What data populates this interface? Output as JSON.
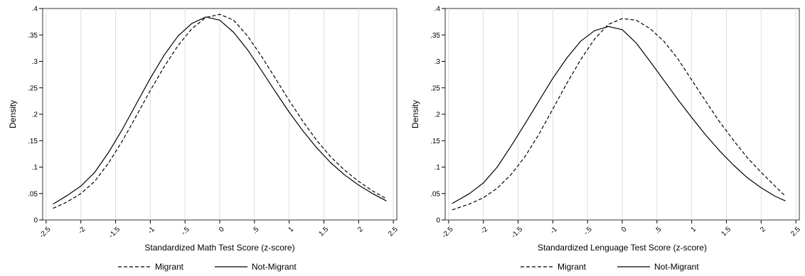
{
  "chart_data": [
    {
      "type": "line",
      "xlabel": "Standardized Math Test Score (z-score)",
      "ylabel": "Density",
      "xlim": [
        -2.55,
        2.55
      ],
      "ylim": [
        0,
        0.4
      ],
      "xticks": [
        -2.5,
        -2,
        -1.5,
        -1,
        -0.5,
        0,
        0.5,
        1,
        1.5,
        2,
        2.5
      ],
      "xtick_labels": [
        "-2.5",
        "-2",
        "-1.5",
        "-1",
        "-.5",
        "0",
        ".5",
        "1",
        "1.5",
        "2",
        "2.5"
      ],
      "yticks": [
        0,
        0.05,
        0.1,
        0.15,
        0.2,
        0.25,
        0.3,
        0.35,
        0.4
      ],
      "ytick_labels": [
        "0",
        ".05",
        ".1",
        ".15",
        ".2",
        ".25",
        ".3",
        ".35",
        ".4"
      ],
      "grid": "vertical",
      "legend": "bottom",
      "series": [
        {
          "name": "Migrant",
          "style": "dashed",
          "x": [
            -2.4,
            -2.2,
            -2.0,
            -1.8,
            -1.6,
            -1.4,
            -1.2,
            -1.0,
            -0.8,
            -0.6,
            -0.4,
            -0.2,
            0.0,
            0.2,
            0.4,
            0.6,
            0.8,
            1.0,
            1.2,
            1.4,
            1.6,
            1.8,
            2.0,
            2.2,
            2.4
          ],
          "y": [
            0.022,
            0.034,
            0.05,
            0.073,
            0.108,
            0.15,
            0.197,
            0.245,
            0.29,
            0.33,
            0.362,
            0.383,
            0.389,
            0.378,
            0.348,
            0.31,
            0.268,
            0.226,
            0.186,
            0.15,
            0.119,
            0.094,
            0.073,
            0.055,
            0.04
          ]
        },
        {
          "name": "Not-Migrant",
          "style": "solid",
          "x": [
            -2.4,
            -2.2,
            -2.0,
            -1.8,
            -1.6,
            -1.4,
            -1.2,
            -1.0,
            -0.8,
            -0.6,
            -0.4,
            -0.2,
            0.0,
            0.2,
            0.4,
            0.6,
            0.8,
            1.0,
            1.2,
            1.4,
            1.6,
            1.8,
            2.0,
            2.2,
            2.4
          ],
          "y": [
            0.03,
            0.046,
            0.064,
            0.09,
            0.128,
            0.172,
            0.22,
            0.268,
            0.312,
            0.348,
            0.372,
            0.384,
            0.378,
            0.355,
            0.322,
            0.283,
            0.243,
            0.204,
            0.168,
            0.136,
            0.108,
            0.085,
            0.066,
            0.05,
            0.036
          ]
        }
      ]
    },
    {
      "type": "line",
      "xlabel": "Standardized Lenguage Test Score (z-score)",
      "ylabel": "Density",
      "xlim": [
        -2.55,
        2.55
      ],
      "ylim": [
        0,
        0.4
      ],
      "xticks": [
        -2.5,
        -2,
        -1.5,
        -1,
        -0.5,
        0,
        0.5,
        1,
        1.5,
        2,
        2.5
      ],
      "xtick_labels": [
        "-2.5",
        "-2",
        "-1.5",
        "-1",
        "-.5",
        "0",
        ".5",
        "1",
        "1.5",
        "2",
        "2.5"
      ],
      "yticks": [
        0,
        0.05,
        0.1,
        0.15,
        0.2,
        0.25,
        0.3,
        0.35,
        0.4
      ],
      "ytick_labels": [
        "0",
        ".05",
        ".1",
        ".15",
        ".2",
        ".25",
        ".3",
        ".35",
        ".4"
      ],
      "grid": "vertical",
      "legend": "bottom",
      "series": [
        {
          "name": "Migrant",
          "style": "dashed",
          "x": [
            -2.45,
            -2.2,
            -2.0,
            -1.8,
            -1.6,
            -1.4,
            -1.2,
            -1.0,
            -0.8,
            -0.6,
            -0.4,
            -0.2,
            0.0,
            0.2,
            0.4,
            0.6,
            0.8,
            1.0,
            1.2,
            1.4,
            1.6,
            1.8,
            2.0,
            2.2,
            2.35
          ],
          "y": [
            0.019,
            0.03,
            0.042,
            0.06,
            0.086,
            0.12,
            0.162,
            0.21,
            0.258,
            0.303,
            0.342,
            0.37,
            0.381,
            0.378,
            0.362,
            0.338,
            0.305,
            0.265,
            0.225,
            0.186,
            0.151,
            0.118,
            0.09,
            0.064,
            0.045
          ]
        },
        {
          "name": "Not-Migrant",
          "style": "solid",
          "x": [
            -2.45,
            -2.2,
            -2.0,
            -1.8,
            -1.6,
            -1.4,
            -1.2,
            -1.0,
            -0.8,
            -0.6,
            -0.4,
            -0.2,
            0.0,
            0.2,
            0.4,
            0.6,
            0.8,
            1.0,
            1.2,
            1.4,
            1.6,
            1.8,
            2.0,
            2.2,
            2.35
          ],
          "y": [
            0.031,
            0.05,
            0.07,
            0.1,
            0.14,
            0.182,
            0.225,
            0.268,
            0.306,
            0.338,
            0.358,
            0.366,
            0.36,
            0.335,
            0.3,
            0.264,
            0.228,
            0.194,
            0.161,
            0.131,
            0.104,
            0.08,
            0.061,
            0.045,
            0.036
          ]
        }
      ]
    }
  ]
}
